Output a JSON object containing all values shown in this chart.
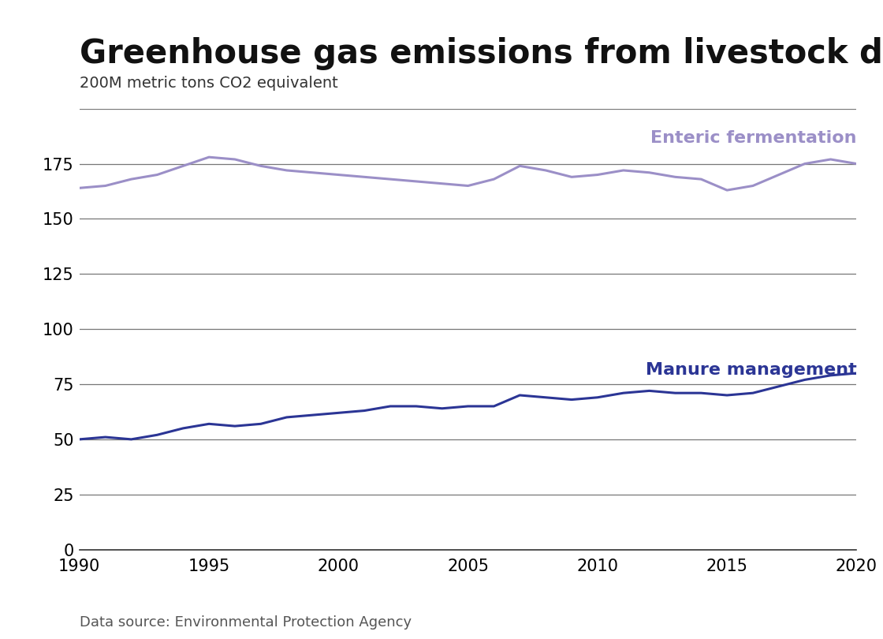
{
  "title": "Greenhouse gas emissions from livestock digestion",
  "ylabel": "200M metric tons CO2 equivalent",
  "source": "Data source: Environmental Protection Agency",
  "years": [
    1990,
    1991,
    1992,
    1993,
    1994,
    1995,
    1996,
    1997,
    1998,
    1999,
    2000,
    2001,
    2002,
    2003,
    2004,
    2005,
    2006,
    2007,
    2008,
    2009,
    2010,
    2011,
    2012,
    2013,
    2014,
    2015,
    2016,
    2017,
    2018,
    2019,
    2020
  ],
  "enteric_fermentation": [
    164,
    165,
    168,
    170,
    174,
    178,
    177,
    174,
    172,
    171,
    170,
    169,
    168,
    167,
    166,
    165,
    168,
    174,
    172,
    169,
    170,
    172,
    171,
    169,
    168,
    163,
    165,
    170,
    175,
    177,
    175
  ],
  "manure_management": [
    50,
    51,
    50,
    52,
    55,
    57,
    56,
    57,
    60,
    61,
    62,
    63,
    65,
    65,
    64,
    65,
    65,
    70,
    69,
    68,
    69,
    71,
    72,
    71,
    71,
    70,
    71,
    74,
    77,
    79,
    80
  ],
  "enteric_color": "#9b8fc7",
  "manure_color": "#2b3595",
  "enteric_label": "Enteric fermentation",
  "manure_label": "Manure management",
  "ylim": [
    0,
    200
  ],
  "xlim": [
    1990,
    2020
  ],
  "yticks": [
    0,
    25,
    50,
    75,
    100,
    125,
    150,
    175
  ],
  "xticks": [
    1990,
    1995,
    2000,
    2005,
    2010,
    2015,
    2020
  ],
  "title_fontsize": 30,
  "label_fontsize": 14,
  "annotation_fontsize": 16,
  "source_fontsize": 13,
  "line_width": 2.2,
  "background_color": "#ffffff",
  "grid_color": "#777777",
  "tick_label_fontsize": 15,
  "title_color": "#111111",
  "ylabel_color": "#333333",
  "source_color": "#555555"
}
